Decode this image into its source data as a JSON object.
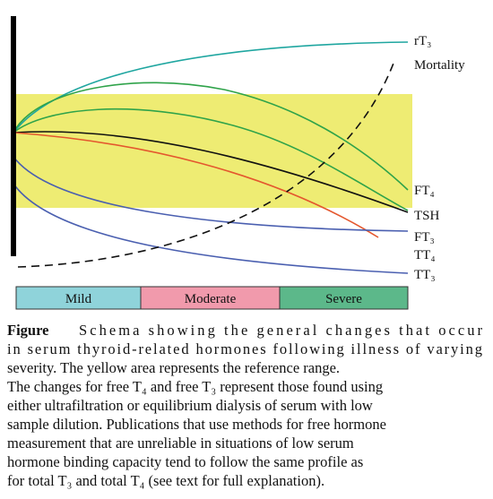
{
  "curve_labels": [
    "rT₃",
    "Mortality",
    "FT₄",
    "TSH",
    "FT₃",
    "TT₄",
    "TT₃"
  ],
  "phases": [
    "Mild",
    "Moderate",
    "Severe"
  ],
  "caption": {
    "label": "Figure",
    "lines": [
      "Schema showing the general changes that occur",
      "in serum thyroid-related hormones following illness of varying",
      "severity. The yellow area represents the reference range.",
      "The changes for free T₄ and free T₃ represent those found using",
      "either ultrafiltration or equilibrium dialysis of serum with low",
      "sample dilution. Publications that use methods for free hormone",
      "measurement that are unreliable in situations of low serum",
      "hormone binding capacity tend to follow the same profile as",
      "for total T₃ and total T₄ (see text for full explanation)."
    ]
  }
}
